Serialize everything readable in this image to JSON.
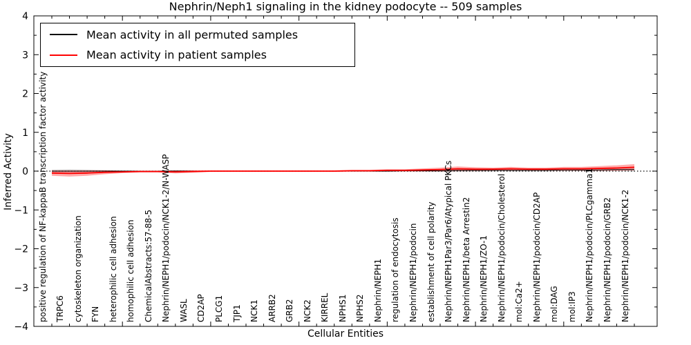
{
  "window": {
    "background": "#ffffff"
  },
  "title": "Nephrin/Neph1 signaling in the kidney podocyte -- 509 samples",
  "legend": {
    "items": [
      {
        "label": "Mean activity in all permuted samples",
        "color": "#000000"
      },
      {
        "label": "Mean activity in patient samples",
        "color": "#ff0000"
      }
    ]
  },
  "chart_data": {
    "type": "line",
    "title": "Nephrin/Neph1 signaling in the kidney podocyte -- 509 samples",
    "xlabel": "Cellular Entities",
    "ylabel": "Inferred Activity",
    "ylim": [
      -4,
      4
    ],
    "yticks": [
      -4,
      -3,
      -2,
      -1,
      0,
      1,
      2,
      3,
      4
    ],
    "grid": false,
    "zero_line_style": "dotted",
    "legend_position": "upper left",
    "x_tick_label_rotation": 90,
    "categories": [
      "positive regulation of NF-kappaB transcription factor activity",
      "TRPC6",
      "cytoskeleton organization",
      "FYN",
      "heterophilic cell adhesion",
      "homophilic cell adhesion",
      "ChemicalAbstracts:57-88-5",
      "Nephrin/NEPH1/podocin/NCK1-2/N-WASP",
      "WASL",
      "CD2AP",
      "PLCG1",
      "TJP1",
      "NCK1",
      "ARRB2",
      "GRB2",
      "NCK2",
      "KIRREL",
      "NPHS1",
      "NPHS2",
      "Nephrin/NEPH1",
      "regulation of endocytosis",
      "Nephrin/NEPH1/podocin",
      "establishment of cell polarity",
      "Nephrin/NEPH1Par3/Par6/Atypical PKCs",
      "Nephrin/NEPH1/beta Arrestin2",
      "Nephrin/NEPH1/ZO-1",
      "Nephrin/NEPH1/podocin/Cholesterol",
      "mol:Ca2+",
      "Nephrin/NEPH1/podocin/CD2AP",
      "mol:DAG",
      "mol:IP3",
      "Nephrin/NEPH1/podocin/PLCgamma1",
      "Nephrin/NEPH1/podocin/GRB2",
      "Nephrin/NEPH1/podocin/NCK1-2"
    ],
    "series": [
      {
        "name": "Mean activity in all permuted samples",
        "color": "#000000",
        "line_width": 1,
        "values": [
          0,
          0,
          0,
          0,
          0,
          0,
          0,
          0,
          0,
          0,
          0,
          0,
          0,
          0,
          0,
          0,
          0,
          0,
          0,
          0,
          0.01,
          0.01,
          0.01,
          0.02,
          0.02,
          0.02,
          0.02,
          0.02,
          0.02,
          0.03,
          0.03,
          0.03,
          0.04,
          0.04
        ],
        "band_halfwidth": [
          0.04,
          0.05,
          0.04,
          0.03,
          0.02,
          0.01,
          0.01,
          0.03,
          0.02,
          0.01,
          0.01,
          0.01,
          0.01,
          0.01,
          0.01,
          0.01,
          0.01,
          0.01,
          0.01,
          0.02,
          0.02,
          0.02,
          0.03,
          0.04,
          0.03,
          0.03,
          0.03,
          0.03,
          0.03,
          0.03,
          0.03,
          0.04,
          0.04,
          0.05
        ],
        "band_color": "#888888",
        "band_opacity": 0.3
      },
      {
        "name": "Mean activity in patient samples",
        "color": "#ff0000",
        "line_width": 1.8,
        "values": [
          -0.05,
          -0.06,
          -0.05,
          -0.03,
          -0.02,
          -0.01,
          -0.01,
          -0.02,
          -0.01,
          0,
          0,
          0,
          0,
          0,
          0,
          0,
          0,
          0.01,
          0.01,
          0.02,
          0.02,
          0.03,
          0.04,
          0.06,
          0.05,
          0.05,
          0.06,
          0.05,
          0.05,
          0.06,
          0.06,
          0.07,
          0.08,
          0.1
        ],
        "band_halfwidth": [
          0.07,
          0.08,
          0.07,
          0.05,
          0.03,
          0.02,
          0.02,
          0.04,
          0.03,
          0.02,
          0.02,
          0.02,
          0.02,
          0.02,
          0.02,
          0.02,
          0.02,
          0.02,
          0.02,
          0.03,
          0.03,
          0.04,
          0.05,
          0.06,
          0.05,
          0.04,
          0.05,
          0.04,
          0.04,
          0.05,
          0.05,
          0.06,
          0.07,
          0.08
        ],
        "band_color": "#ff0000",
        "band_opacity": 0.33
      }
    ]
  }
}
